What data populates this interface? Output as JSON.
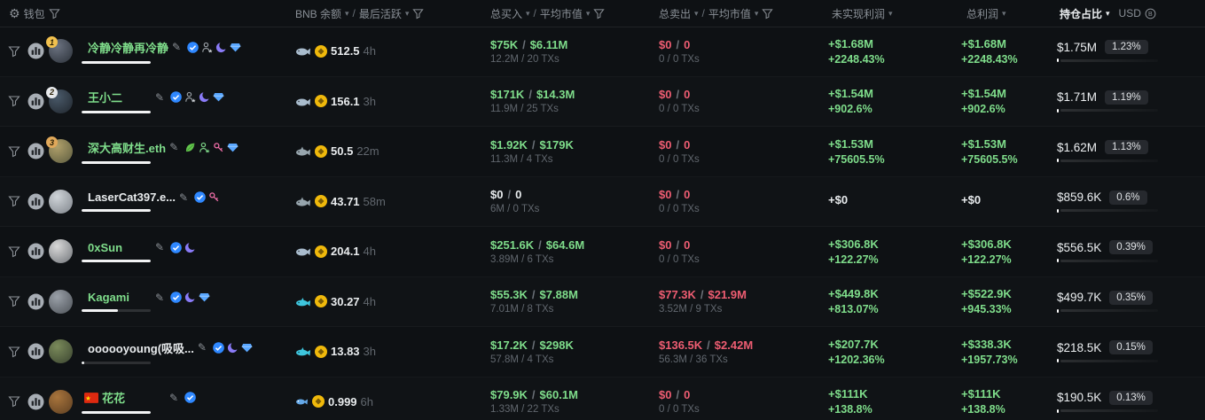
{
  "header": {
    "wallet_label": "钱包",
    "bnb_label": "BNB 余额",
    "active_label": "最后活跃",
    "buy_label": "总买入",
    "avg_mc_label": "平均市值",
    "sell_label": "总卖出",
    "unrealized_label": "未实现利润",
    "total_profit_label": "总利润",
    "holdings_label": "持仓占比",
    "currency_label": "USD",
    "separator": "/"
  },
  "colors": {
    "accent_green": "#7fdd8b",
    "accent_red": "#ee5d72",
    "text_white": "#e9ecee",
    "header_gray": "#8a9097",
    "sub_gray": "#61676e",
    "badge_bg": "#26292e",
    "coin_gold": "#f0b90b",
    "rank_gold": "#f2c14e",
    "rank_silver": "#e7e9ec",
    "rank_bronze": "#e0a85a"
  },
  "rows": [
    {
      "rank": "1",
      "rank_color": "#f2c14e",
      "name": "冷静冷静再冷静",
      "name_color": "green",
      "name_bar_pct": 100,
      "avatar_colors": [
        "#6b7280",
        "#2b3139"
      ],
      "pre_icons": [],
      "icons": [
        "verified",
        "person-star",
        "purple-whale",
        "blue-diamond"
      ],
      "animal": "whale",
      "bnb": "512.5",
      "active": "4h",
      "buy_usd": "$75K",
      "buy_mc": "$6.11M",
      "buy_color": "green",
      "buy_sub": "12.2M / 20 TXs",
      "sell_usd": "$0",
      "sell_mc": "0",
      "sell_sub": "0 / 0 TXs",
      "unreal": "+$1.68M",
      "unreal_pct": "+2248.43%",
      "unreal_color": "green",
      "total": "+$1.68M",
      "total_pct": "+2248.43%",
      "total_color": "green",
      "hold": "$1.75M",
      "hold_pct": "1.23%"
    },
    {
      "rank": "2",
      "rank_color": "#e7e9ec",
      "name": "王小二",
      "name_color": "green",
      "name_bar_pct": 100,
      "avatar_colors": [
        "#4a5a6a",
        "#20262d"
      ],
      "pre_icons": [],
      "icons": [
        "verified",
        "person-star",
        "purple-whale",
        "blue-diamond"
      ],
      "animal": "whale",
      "bnb": "156.1",
      "active": "3h",
      "buy_usd": "$171K",
      "buy_mc": "$14.3M",
      "buy_color": "green",
      "buy_sub": "11.9M / 25 TXs",
      "sell_usd": "$0",
      "sell_mc": "0",
      "sell_sub": "0 / 0 TXs",
      "unreal": "+$1.54M",
      "unreal_pct": "+902.6%",
      "unreal_color": "green",
      "total": "+$1.54M",
      "total_pct": "+902.6%",
      "total_color": "green",
      "hold": "$1.71M",
      "hold_pct": "1.19%"
    },
    {
      "rank": "3",
      "rank_color": "#e0a85a",
      "name": "深大高财生.eth",
      "name_color": "green",
      "name_bar_pct": 100,
      "avatar_colors": [
        "#b0a06a",
        "#5c5c40"
      ],
      "pre_icons": [],
      "icons": [
        "leaf",
        "person-star-green",
        "pink-key",
        "blue-diamond"
      ],
      "animal": "shark",
      "bnb": "50.5",
      "active": "22m",
      "buy_usd": "$1.92K",
      "buy_mc": "$179K",
      "buy_color": "green",
      "buy_sub": "11.3M / 4 TXs",
      "sell_usd": "$0",
      "sell_mc": "0",
      "sell_sub": "0 / 0 TXs",
      "unreal": "+$1.53M",
      "unreal_pct": "+75605.5%",
      "unreal_color": "green",
      "total": "+$1.53M",
      "total_pct": "+75605.5%",
      "total_color": "green",
      "hold": "$1.62M",
      "hold_pct": "1.13%"
    },
    {
      "rank": "",
      "rank_color": "",
      "name": "LaserCat397.e...",
      "name_color": "white",
      "name_bar_pct": 100,
      "avatar_colors": [
        "#cfd4d8",
        "#7e838a"
      ],
      "pre_icons": [],
      "icons": [
        "verified",
        "pink-key"
      ],
      "animal": "shark",
      "bnb": "43.71",
      "active": "58m",
      "buy_usd": "$0",
      "buy_mc": "0",
      "buy_color": "white",
      "buy_sub": "6M / 0 TXs",
      "sell_usd": "$0",
      "sell_mc": "0",
      "sell_sub": "0 / 0 TXs",
      "unreal": "+$0",
      "unreal_pct": "",
      "unreal_color": "white",
      "total": "+$0",
      "total_pct": "",
      "total_color": "white",
      "hold": "$859.6K",
      "hold_pct": "0.6%"
    },
    {
      "rank": "",
      "rank_color": "",
      "name": "0xSun",
      "name_color": "green",
      "name_bar_pct": 100,
      "avatar_colors": [
        "#d8d8d8",
        "#6f7378"
      ],
      "pre_icons": [],
      "icons": [
        "verified",
        "purple-whale"
      ],
      "animal": "whale",
      "bnb": "204.1",
      "active": "4h",
      "buy_usd": "$251.6K",
      "buy_mc": "$64.6M",
      "buy_color": "green",
      "buy_sub": "3.89M / 6 TXs",
      "sell_usd": "$0",
      "sell_mc": "0",
      "sell_sub": "0 / 0 TXs",
      "unreal": "+$306.8K",
      "unreal_pct": "+122.27%",
      "unreal_color": "green",
      "total": "+$306.8K",
      "total_pct": "+122.27%",
      "total_color": "green",
      "hold": "$556.5K",
      "hold_pct": "0.39%"
    },
    {
      "rank": "",
      "rank_color": "",
      "name": "Kagami",
      "name_color": "green",
      "name_bar_pct": 52,
      "avatar_colors": [
        "#9aa0a8",
        "#4d5258"
      ],
      "pre_icons": [],
      "icons": [
        "verified",
        "purple-whale",
        "blue-diamond"
      ],
      "animal": "dolphin",
      "bnb": "30.27",
      "active": "4h",
      "buy_usd": "$55.3K",
      "buy_mc": "$7.88M",
      "buy_color": "green",
      "buy_sub": "7.01M / 8 TXs",
      "sell_usd": "$77.3K",
      "sell_mc": "$21.9M",
      "sell_sub": "3.52M / 9 TXs",
      "unreal": "+$449.8K",
      "unreal_pct": "+813.07%",
      "unreal_color": "green",
      "total": "+$522.9K",
      "total_pct": "+945.33%",
      "total_color": "green",
      "hold": "$499.7K",
      "hold_pct": "0.35%"
    },
    {
      "rank": "",
      "rank_color": "",
      "name": "oooooyoung(吸吸...",
      "name_color": "white",
      "name_bar_pct": 4,
      "avatar_colors": [
        "#7a8a5a",
        "#3a4430"
      ],
      "pre_icons": [],
      "icons": [
        "verified",
        "purple-whale",
        "blue-diamond"
      ],
      "animal": "dolphin",
      "bnb": "13.83",
      "active": "3h",
      "buy_usd": "$17.2K",
      "buy_mc": "$298K",
      "buy_color": "green",
      "buy_sub": "57.8M / 4 TXs",
      "sell_usd": "$136.5K",
      "sell_mc": "$2.42M",
      "sell_sub": "56.3M / 36 TXs",
      "unreal": "+$207.7K",
      "unreal_pct": "+1202.36%",
      "unreal_color": "green",
      "total": "+$338.3K",
      "total_pct": "+1957.73%",
      "total_color": "green",
      "hold": "$218.5K",
      "hold_pct": "0.15%"
    },
    {
      "rank": "",
      "rank_color": "",
      "name": "花花",
      "name_color": "green",
      "name_bar_pct": 100,
      "avatar_colors": [
        "#a8743c",
        "#5d3f22"
      ],
      "pre_icons": [
        "flag-cn"
      ],
      "icons": [
        "verified"
      ],
      "animal": "fish",
      "bnb": "0.999",
      "active": "6h",
      "buy_usd": "$79.9K",
      "buy_mc": "$60.1M",
      "buy_color": "green",
      "buy_sub": "1.33M / 22 TXs",
      "sell_usd": "$0",
      "sell_mc": "0",
      "sell_sub": "0 / 0 TXs",
      "unreal": "+$111K",
      "unreal_pct": "+138.8%",
      "unreal_color": "green",
      "total": "+$111K",
      "total_pct": "+138.8%",
      "total_color": "green",
      "hold": "$190.5K",
      "hold_pct": "0.13%"
    }
  ]
}
